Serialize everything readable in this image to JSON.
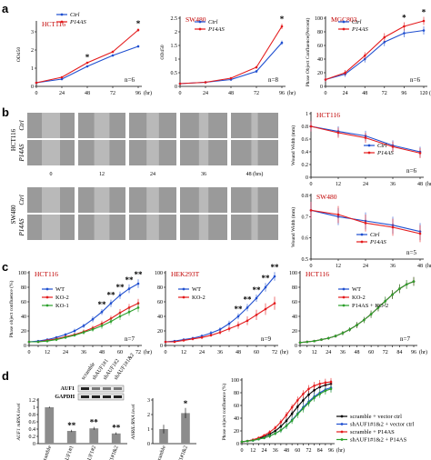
{
  "chart_data": [
    {
      "id": "a1",
      "type": "line",
      "title": "HCT116",
      "ylabel": "OD450",
      "x": [
        0,
        24,
        48,
        72,
        96
      ],
      "xlabel_unit": "(hr)",
      "ylim": [
        0,
        3.5
      ],
      "yticks": [
        0,
        1,
        2,
        3
      ],
      "series": [
        {
          "name": "Ctrl",
          "color": "#1f4fd0",
          "values": [
            0.2,
            0.4,
            1.1,
            1.7,
            2.2
          ],
          "err": [
            0.02,
            0.03,
            0.05,
            0.06,
            0.07
          ]
        },
        {
          "name": "P14AS",
          "color": "#e41a1c",
          "values": [
            0.2,
            0.5,
            1.3,
            1.9,
            3.1
          ],
          "err": [
            0.02,
            0.03,
            0.05,
            0.06,
            0.09
          ]
        }
      ],
      "stars": [
        2,
        4
      ],
      "n": "n=6"
    },
    {
      "id": "a2",
      "type": "line",
      "title": "SW480",
      "ylabel": "OD450",
      "x": [
        0,
        24,
        48,
        72,
        96
      ],
      "xlabel_unit": "(hr)",
      "ylim": [
        0,
        2.5
      ],
      "yticks": [
        0,
        0.5,
        1,
        1.5,
        2,
        2.5
      ],
      "series": [
        {
          "name": "Ctrl",
          "color": "#1f4fd0",
          "values": [
            0.1,
            0.15,
            0.25,
            0.55,
            1.6
          ],
          "err": [
            0.01,
            0.02,
            0.02,
            0.05,
            0.08
          ]
        },
        {
          "name": "P14AS",
          "color": "#e41a1c",
          "values": [
            0.1,
            0.15,
            0.3,
            0.7,
            2.2
          ],
          "err": [
            0.01,
            0.02,
            0.03,
            0.05,
            0.1
          ]
        }
      ],
      "stars": [
        4
      ],
      "n": "n=8"
    },
    {
      "id": "a3",
      "type": "line",
      "title": "MGC803",
      "ylabel": "Phase Object Confluence(Percent)",
      "x": [
        0,
        24,
        48,
        72,
        96,
        120
      ],
      "xlabel_unit": "(hr)",
      "ylim": [
        0,
        100
      ],
      "yticks": [
        0,
        20,
        40,
        60,
        80,
        100
      ],
      "series": [
        {
          "name": "Ctrl",
          "color": "#1f4fd0",
          "values": [
            10,
            18,
            40,
            65,
            78,
            82
          ],
          "err": [
            3,
            4,
            5,
            6,
            6,
            6
          ]
        },
        {
          "name": "P14AS",
          "color": "#e41a1c",
          "values": [
            10,
            20,
            45,
            72,
            88,
            96
          ],
          "err": [
            3,
            4,
            5,
            6,
            6,
            6
          ]
        }
      ],
      "stars": [
        4,
        5
      ],
      "n": "n=6"
    },
    {
      "id": "b1",
      "type": "line",
      "title": "HCT116",
      "ylabel": "Wound Width (mm)",
      "x": [
        0,
        12,
        24,
        36,
        48
      ],
      "xlabel_unit": "(hrs)",
      "ylim": [
        0,
        1
      ],
      "yticks": [
        0,
        0.2,
        0.4,
        0.6,
        0.8,
        1
      ],
      "series": [
        {
          "name": "Ctrl",
          "color": "#1f4fd0",
          "values": [
            0.8,
            0.72,
            0.65,
            0.5,
            0.4
          ],
          "err": [
            0.08,
            0.08,
            0.08,
            0.08,
            0.08
          ]
        },
        {
          "name": "P14AS",
          "color": "#e41a1c",
          "values": [
            0.8,
            0.7,
            0.62,
            0.48,
            0.38
          ],
          "err": [
            0.08,
            0.08,
            0.08,
            0.08,
            0.08
          ]
        }
      ],
      "stars": [],
      "n": "n=6"
    },
    {
      "id": "b2",
      "type": "line",
      "title": "SW480",
      "ylabel": "Wound Width (mm)",
      "x": [
        0,
        12,
        24,
        36,
        48
      ],
      "xlabel_unit": "(hrs)",
      "ylim": [
        0.5,
        0.8
      ],
      "yticks": [
        0.5,
        0.6,
        0.7,
        0.8
      ],
      "series": [
        {
          "name": "Ctrl",
          "color": "#1f4fd0",
          "values": [
            0.73,
            0.7,
            0.68,
            0.66,
            0.63
          ],
          "err": [
            0.04,
            0.04,
            0.04,
            0.04,
            0.04
          ]
        },
        {
          "name": "P14AS",
          "color": "#e41a1c",
          "values": [
            0.73,
            0.71,
            0.67,
            0.65,
            0.62
          ],
          "err": [
            0.04,
            0.04,
            0.04,
            0.04,
            0.04
          ]
        }
      ],
      "stars": [],
      "n": "n=5"
    },
    {
      "id": "c1",
      "type": "line",
      "title": "HCT116",
      "ylabel": "Phase object confluence (%)",
      "x": [
        0,
        6,
        12,
        18,
        24,
        30,
        36,
        42,
        48,
        54,
        60,
        66,
        72
      ],
      "xlabel_unit": "(hr)",
      "ylim": [
        0,
        100
      ],
      "yticks": [
        0,
        20,
        40,
        60,
        80,
        100
      ],
      "series": [
        {
          "name": "WT",
          "color": "#1f4fd0",
          "values": [
            5,
            6,
            8,
            11,
            15,
            20,
            27,
            36,
            46,
            58,
            69,
            78,
            85
          ],
          "err": [
            1,
            1,
            1,
            2,
            2,
            3,
            3,
            4,
            4,
            5,
            5,
            6,
            6
          ]
        },
        {
          "name": "KO-2",
          "color": "#e41a1c",
          "values": [
            5,
            5,
            7,
            9,
            12,
            15,
            19,
            24,
            30,
            37,
            45,
            52,
            58
          ],
          "err": [
            1,
            1,
            1,
            2,
            2,
            2,
            3,
            3,
            4,
            4,
            5,
            5,
            6
          ]
        },
        {
          "name": "KO-1",
          "color": "#2ca02c",
          "values": [
            5,
            5,
            6,
            8,
            11,
            14,
            18,
            22,
            27,
            33,
            40,
            46,
            52
          ],
          "err": [
            1,
            1,
            1,
            2,
            2,
            2,
            3,
            3,
            4,
            4,
            5,
            5,
            6
          ]
        }
      ],
      "stars": [
        8,
        9,
        10,
        11,
        12
      ],
      "n": "n=7"
    },
    {
      "id": "c2",
      "type": "line",
      "title": "HEK293T",
      "ylabel": "",
      "x": [
        0,
        6,
        12,
        18,
        24,
        30,
        36,
        42,
        48,
        54,
        60,
        66,
        72
      ],
      "xlabel_unit": "(hr)",
      "ylim": [
        0,
        100
      ],
      "yticks": [
        0,
        20,
        40,
        60,
        80,
        100
      ],
      "series": [
        {
          "name": "WT",
          "color": "#1f4fd0",
          "values": [
            5,
            6,
            8,
            10,
            13,
            17,
            22,
            30,
            40,
            52,
            65,
            80,
            95
          ],
          "err": [
            1,
            1,
            1,
            2,
            2,
            3,
            3,
            4,
            4,
            5,
            5,
            6,
            6
          ]
        },
        {
          "name": "KO-2",
          "color": "#e41a1c",
          "values": [
            5,
            5,
            7,
            9,
            11,
            14,
            18,
            23,
            28,
            34,
            42,
            50,
            58
          ],
          "err": [
            1,
            1,
            1,
            2,
            2,
            2,
            3,
            4,
            5,
            6,
            7,
            8,
            9
          ]
        }
      ],
      "stars": [
        8,
        9,
        10,
        11,
        12
      ],
      "n": "n=9"
    },
    {
      "id": "c3",
      "type": "line",
      "title": "HCT116",
      "ylabel": "",
      "x": [
        0,
        6,
        12,
        18,
        24,
        30,
        36,
        42,
        48,
        54,
        60,
        66,
        72,
        78,
        84,
        90,
        96
      ],
      "xlabel_unit": "(hr)",
      "ylim": [
        0,
        100
      ],
      "yticks": [
        0,
        20,
        40,
        60,
        80,
        100
      ],
      "series": [
        {
          "name": "WT",
          "color": "#1f4fd0",
          "values": [
            4,
            5,
            6,
            8,
            10,
            13,
            17,
            22,
            28,
            35,
            43,
            52,
            61,
            70,
            78,
            84,
            88
          ],
          "err": [
            1,
            1,
            1,
            1,
            2,
            2,
            3,
            3,
            4,
            4,
            5,
            5,
            6,
            6,
            6,
            6,
            6
          ]
        },
        {
          "name": "KO-2",
          "color": "#e41a1c",
          "values": [
            4,
            5,
            6,
            8,
            10,
            13,
            17,
            22,
            28,
            35,
            43,
            52,
            61,
            70,
            78,
            84,
            88
          ],
          "err": [
            1,
            1,
            1,
            1,
            2,
            2,
            3,
            3,
            4,
            4,
            5,
            5,
            6,
            6,
            6,
            6,
            6
          ]
        },
        {
          "name": "P14AS + KO-2",
          "color": "#2ca02c",
          "values": [
            4,
            5,
            6,
            8,
            10,
            13,
            17,
            22,
            28,
            35,
            43,
            52,
            61,
            70,
            78,
            84,
            88
          ],
          "err": [
            1,
            1,
            1,
            1,
            2,
            2,
            3,
            3,
            4,
            4,
            5,
            5,
            6,
            6,
            6,
            6,
            6
          ]
        }
      ],
      "stars": [],
      "n": "n=7"
    },
    {
      "id": "d1",
      "type": "bar",
      "ylabel": "AUF1 mRNA level",
      "categories": [
        "scramble",
        "shAUF1#1",
        "shAUF1#2",
        "shAUF1#1&2"
      ],
      "values": [
        1.0,
        0.35,
        0.42,
        0.28
      ],
      "err": [
        0.02,
        0.03,
        0.04,
        0.03
      ],
      "ylim": [
        0,
        1.2
      ],
      "yticks": [
        0,
        0.2,
        0.4,
        0.6,
        0.8,
        1,
        1.2
      ],
      "stars": [
        1,
        2,
        3
      ]
    },
    {
      "id": "d2",
      "type": "bar",
      "ylabel": "ANRIL/RNA level",
      "categories": [
        "scramble",
        "shAUF1#1&2"
      ],
      "values": [
        1.0,
        2.1
      ],
      "err": [
        0.3,
        0.35
      ],
      "ylim": [
        0,
        3
      ],
      "yticks": [
        0,
        1,
        2,
        3
      ],
      "stars": [
        1
      ]
    },
    {
      "id": "d3",
      "type": "line",
      "ylabel": "Phase object confluence (%)",
      "x": [
        0,
        6,
        12,
        18,
        24,
        30,
        36,
        42,
        48,
        54,
        60,
        66,
        72,
        78,
        84,
        90,
        96
      ],
      "xlabel_unit": "(hr)",
      "ylim": [
        0,
        100
      ],
      "yticks": [
        0,
        20,
        40,
        60,
        80,
        100
      ],
      "series": [
        {
          "name": "scramble + vector ctrl",
          "color": "#000000",
          "values": [
            3,
            4,
            6,
            8,
            11,
            15,
            20,
            27,
            36,
            47,
            58,
            68,
            77,
            84,
            89,
            92,
            94
          ],
          "err": [
            1,
            1,
            1,
            2,
            2,
            3,
            3,
            4,
            5,
            5,
            6,
            6,
            6,
            6,
            6,
            6,
            6
          ]
        },
        {
          "name": "shAUF1#1&2 + vector ctrl",
          "color": "#1f4fd0",
          "values": [
            3,
            4,
            5,
            7,
            9,
            12,
            16,
            21,
            28,
            37,
            47,
            57,
            66,
            74,
            80,
            85,
            88
          ],
          "err": [
            1,
            1,
            1,
            2,
            2,
            3,
            3,
            4,
            5,
            5,
            6,
            6,
            6,
            6,
            6,
            6,
            6
          ]
        },
        {
          "name": "scramble + P14AS",
          "color": "#e41a1c",
          "values": [
            3,
            4,
            6,
            9,
            13,
            18,
            25,
            34,
            45,
            57,
            68,
            78,
            86,
            91,
            94,
            96,
            97
          ],
          "err": [
            1,
            1,
            1,
            2,
            2,
            3,
            3,
            4,
            5,
            5,
            6,
            6,
            6,
            6,
            6,
            6,
            6
          ]
        },
        {
          "name": "shAUF1#1&2 + P14AS",
          "color": "#2ca02c",
          "values": [
            3,
            4,
            5,
            7,
            9,
            12,
            16,
            21,
            28,
            36,
            46,
            55,
            64,
            72,
            78,
            83,
            86
          ],
          "err": [
            1,
            1,
            1,
            2,
            2,
            3,
            3,
            4,
            5,
            5,
            6,
            6,
            6,
            6,
            6,
            6,
            6
          ]
        }
      ],
      "stars": []
    }
  ],
  "labels": {
    "panels": [
      "a",
      "b",
      "c",
      "d"
    ],
    "wound_times": [
      "0",
      "12",
      "24",
      "36",
      "48 (hrs)"
    ],
    "wound_rows": [
      {
        "cell": "HCT116",
        "conds": [
          "Ctrl",
          "P14AS"
        ]
      },
      {
        "cell": "SW480",
        "conds": [
          "Ctrl",
          "P14AS"
        ]
      }
    ],
    "blot_lanes": [
      "scramble",
      "shAUF1#1",
      "shAUF1#2",
      "shAUF1#1&2"
    ],
    "blot_rows": [
      "AUF1",
      "GAPDH"
    ],
    "star": "*",
    "dstar": "**"
  }
}
